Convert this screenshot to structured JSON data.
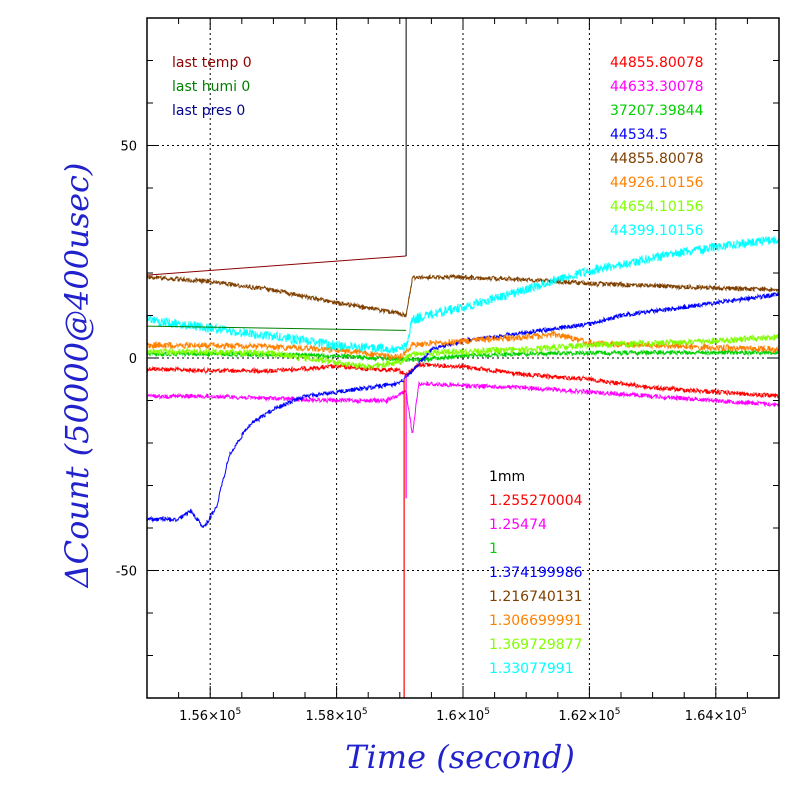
{
  "chart_data": {
    "type": "line",
    "xlabel": "Time (second)",
    "ylabel": "ΔCount (50000@400usec)",
    "xlim": [
      155000,
      165000
    ],
    "ylim": [
      -80,
      80
    ],
    "x_ticks": [
      {
        "value": 156000,
        "mant": "1.56×10",
        "exp": "5"
      },
      {
        "value": 158000,
        "mant": "1.58×10",
        "exp": "5"
      },
      {
        "value": 160000,
        "mant": "1.6×10",
        "exp": "5"
      },
      {
        "value": 162000,
        "mant": "1.62×10",
        "exp": "5"
      },
      {
        "value": 164000,
        "mant": "1.64×10",
        "exp": "5"
      }
    ],
    "y_ticks": [
      {
        "value": 50,
        "label": "50"
      },
      {
        "value": 0,
        "label": "0"
      },
      {
        "value": -50,
        "label": "-50"
      }
    ],
    "grid": true,
    "marker_x": 159100,
    "info_left": [
      {
        "text": "last temp 0",
        "color": "#8b0000"
      },
      {
        "text": "last humi 0",
        "color": "#007f00"
      },
      {
        "text": "last pres 0",
        "color": "#00008b"
      }
    ],
    "lower_header": {
      "text": "1mm",
      "color": "#000000"
    },
    "series": [
      {
        "value_label": "44855.80078",
        "factor_label": "1.255270004",
        "color": "#ff0000",
        "x": [
          155000,
          156000,
          157000,
          158000,
          159000,
          159100,
          159300,
          160000,
          161000,
          162000,
          163000,
          164000,
          165000
        ],
        "y": [
          -2.5,
          -3,
          -3,
          -2,
          -3,
          -4,
          -1.5,
          -2,
          -4,
          -5,
          -7,
          -8,
          -9
        ]
      },
      {
        "value_label": "44633.30078",
        "factor_label": "1.25474",
        "color": "#ff00ff",
        "x": [
          155000,
          156000,
          157000,
          158000,
          158800,
          159100,
          159200,
          159300,
          160000,
          161000,
          162000,
          163000,
          164000,
          165000
        ],
        "y": [
          -9,
          -9,
          -9.5,
          -10,
          -10,
          -8,
          -18,
          -6,
          -6.5,
          -7,
          -8,
          -9,
          -10,
          -11
        ]
      },
      {
        "value_label": "37207.39844",
        "factor_label": "1",
        "color": "#00d000",
        "x": [
          155000,
          156000,
          157000,
          158000,
          159000,
          159200,
          160000,
          161000,
          162000,
          163000,
          164000,
          165000
        ],
        "y": [
          1,
          1,
          0.8,
          0.5,
          -0.3,
          -0.5,
          0.5,
          1,
          1.2,
          1.3,
          1.3,
          1.2
        ]
      },
      {
        "value_label": "44534.5",
        "factor_label": "1.374199986",
        "color": "#0000ff",
        "x": [
          155000,
          155500,
          155700,
          155900,
          156100,
          156300,
          156600,
          157000,
          157500,
          158000,
          158500,
          159000,
          159200,
          159500,
          160000,
          160500,
          161000,
          161500,
          162000,
          162500,
          163000,
          163500,
          164000,
          164500,
          165000
        ],
        "y": [
          -38,
          -38,
          -36,
          -40,
          -35,
          -23,
          -16,
          -12,
          -9,
          -8,
          -7,
          -6,
          -3,
          2,
          4,
          5,
          6,
          7,
          8,
          10,
          11,
          12,
          13,
          14,
          15
        ]
      },
      {
        "value_label": "44855.80078",
        "factor_label": "1.216740131",
        "color": "#7f4000",
        "x": [
          155000,
          156000,
          157000,
          158000,
          158800,
          159100,
          159200,
          160000,
          161000,
          162000,
          163000,
          164000,
          165000
        ],
        "y": [
          19,
          18,
          16,
          13,
          11,
          10,
          19,
          19,
          18.5,
          17.5,
          17,
          16.5,
          16
        ]
      },
      {
        "value_label": "44926.10156",
        "factor_label": "1.306699991",
        "color": "#ff8000",
        "x": [
          155000,
          156000,
          157000,
          158000,
          159000,
          159200,
          160000,
          161000,
          161500,
          162000,
          163000,
          164000,
          165000
        ],
        "y": [
          3,
          3,
          2.5,
          2,
          0,
          3,
          4,
          5,
          5.5,
          3.5,
          3,
          2.5,
          2
        ]
      },
      {
        "value_label": "44654.10156",
        "factor_label": "1.369729877",
        "color": "#80ff00",
        "x": [
          155000,
          156000,
          157000,
          158000,
          158500,
          159000,
          159200,
          160000,
          161000,
          162000,
          163000,
          164000,
          165000
        ],
        "y": [
          1.5,
          1.5,
          1,
          -1,
          -2,
          -1,
          1,
          1.5,
          2,
          3,
          3.5,
          4,
          5
        ]
      },
      {
        "value_label": "44399.10156",
        "factor_label": "1.33077991",
        "color": "#00ffff",
        "x": [
          155000,
          155500,
          156000,
          157000,
          158000,
          159000,
          159100,
          159200,
          160000,
          160500,
          161000,
          161500,
          162000,
          162500,
          163000,
          163500,
          164000,
          164500,
          165000
        ],
        "y": [
          9,
          8,
          7,
          5,
          3,
          2,
          3,
          9,
          12,
          14,
          16,
          18.5,
          20.5,
          22,
          23.5,
          25,
          26,
          27,
          28
        ]
      }
    ]
  }
}
